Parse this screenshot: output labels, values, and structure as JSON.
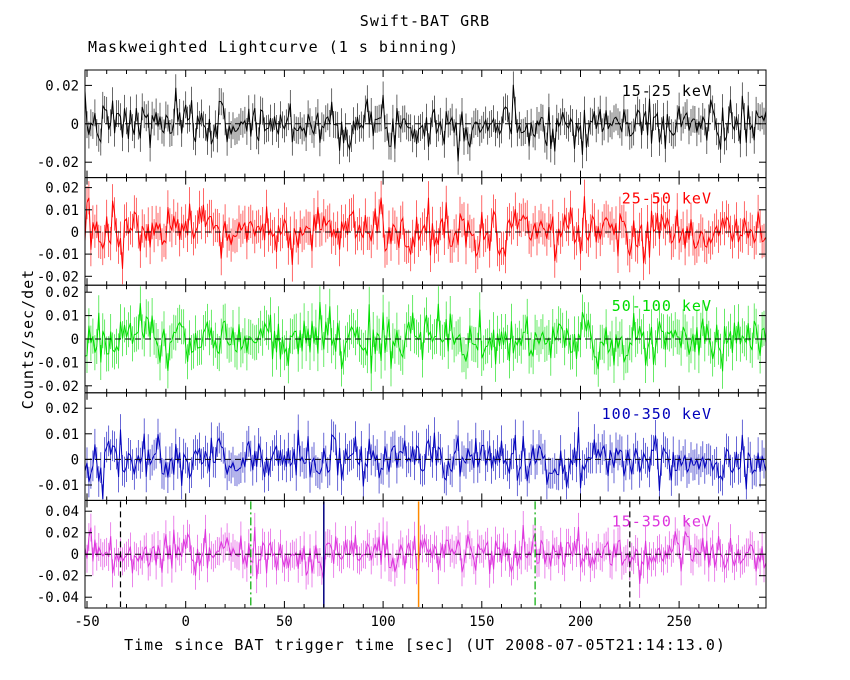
{
  "title": "Swift-BAT GRB",
  "subtitle": "Maskweighted Lightcurve (1 s binning)",
  "ylabel": "Counts/sec/det",
  "xlabel": "Time since BAT trigger time [sec] (UT 2008-07-05T21:14:13.0)",
  "chart_data": {
    "type": "line",
    "title": "Swift-BAT GRB",
    "subtitle": "Maskweighted Lightcurve (1 s binning)",
    "xlabel": "Time since BAT trigger time [sec] (UT 2008-07-05T21:14:13.0)",
    "ylabel": "Counts/sec/det",
    "bin_seconds": 1,
    "x_range": [
      -51,
      294
    ],
    "x_ticks": [
      -50,
      0,
      50,
      100,
      150,
      200,
      250
    ],
    "x_minor_step": 10,
    "grid": false,
    "legend_position": "inside-right-per-panel",
    "panels": [
      {
        "name": "15-25 keV",
        "color": "#000000",
        "ylim": [
          -0.028,
          0.028
        ],
        "yticks": [
          -0.02,
          0,
          0.02
        ],
        "noise_sigma": 0.0062,
        "errbar": 0.007,
        "seed": 7
      },
      {
        "name": "25-50 keV",
        "color": "#ff0000",
        "ylim": [
          -0.024,
          0.0245
        ],
        "yticks": [
          -0.02,
          -0.01,
          0,
          0.01,
          0.02
        ],
        "noise_sigma": 0.006,
        "errbar": 0.0075,
        "seed": 13
      },
      {
        "name": "50-100 keV",
        "color": "#00dd00",
        "ylim": [
          -0.023,
          0.023
        ],
        "yticks": [
          -0.02,
          -0.01,
          0,
          0.01,
          0.02
        ],
        "noise_sigma": 0.006,
        "errbar": 0.0075,
        "seed": 21
      },
      {
        "name": "100-350 keV",
        "color": "#0000bb",
        "ylim": [
          -0.016,
          0.026
        ],
        "yticks": [
          -0.01,
          0,
          0.01,
          0.02
        ],
        "noise_sigma": 0.0048,
        "errbar": 0.006,
        "seed": 42
      },
      {
        "name": "15-350 keV",
        "color": "#dd33dd",
        "ylim": [
          -0.05,
          0.05
        ],
        "yticks": [
          -0.04,
          -0.02,
          0,
          0.02,
          0.04
        ],
        "noise_sigma": 0.0105,
        "errbar": 0.013,
        "seed": 99
      }
    ],
    "zero_line": {
      "color": "#000000",
      "style": "dashed"
    },
    "annotations_bottom_panel": [
      {
        "x": -33,
        "color": "#000000",
        "style": "dashed"
      },
      {
        "x": 33,
        "color": "#00aa00",
        "style": "dashdot"
      },
      {
        "x": 70,
        "color": "#000080",
        "style": "solid"
      },
      {
        "x": 118,
        "color": "#ff8800",
        "style": "solid"
      },
      {
        "x": 177,
        "color": "#00aa00",
        "style": "dashdot"
      },
      {
        "x": 225,
        "color": "#000000",
        "style": "dashed"
      }
    ]
  }
}
